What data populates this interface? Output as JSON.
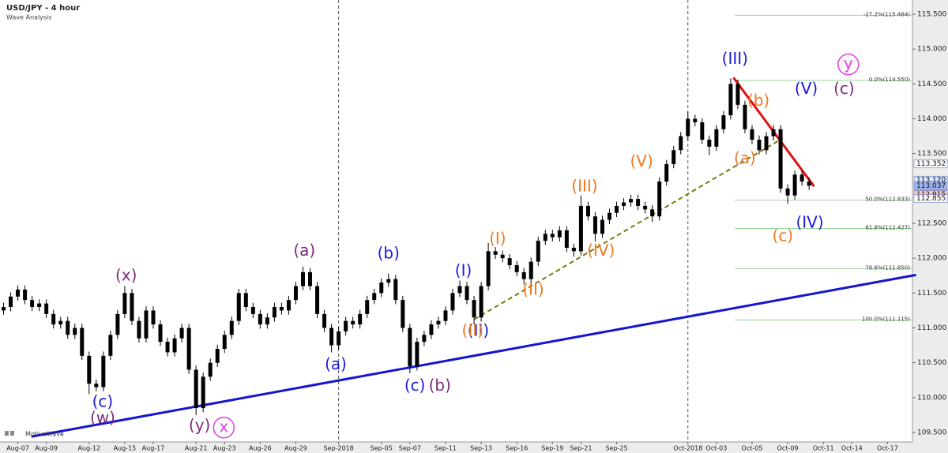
{
  "chart_data": {
    "type": "candlestick",
    "title": "USD/JPY - 4 hour",
    "subtitle": "Wave Analysis",
    "watermark": "MotiveWave",
    "color": "#000000",
    "categories": [
      null,
      null,
      "Aug-07",
      null,
      null,
      null,
      "Aug-09",
      null,
      null,
      null,
      null,
      null,
      "Aug-12",
      null,
      null,
      null,
      null,
      "Aug-15",
      null,
      null,
      null,
      "Aug-17",
      null,
      null,
      null,
      null,
      null,
      "Aug-21",
      null,
      null,
      null,
      "Aug-23",
      null,
      null,
      null,
      null,
      "Aug-26",
      null,
      null,
      null,
      null,
      "Aug-29",
      null,
      null,
      null,
      null,
      null,
      "Sep-2018",
      null,
      null,
      null,
      null,
      null,
      "Sep-05",
      null,
      null,
      null,
      "Sep-07",
      null,
      null,
      null,
      null,
      "Sep-11",
      null,
      null,
      null,
      null,
      "Sep-13",
      null,
      null,
      null,
      null,
      "Sep-16",
      null,
      null,
      null,
      null,
      "Sep-19",
      null,
      null,
      null,
      "Sep-21",
      null,
      null,
      null,
      null,
      "Sep-25",
      null,
      null,
      null,
      null,
      null,
      null,
      null,
      null,
      null,
      "Oct-2018",
      null,
      null,
      null,
      "Oct-03",
      null,
      null,
      null,
      null,
      "Oct-05",
      null,
      null,
      null,
      null,
      "Oct-09",
      null,
      null,
      null,
      null,
      "Oct-11",
      null,
      null,
      null,
      "Oct-14",
      null,
      null,
      null,
      null,
      "Oct-17",
      null,
      null,
      null
    ],
    "open": [
      111.25,
      111.3,
      111.45,
      111.55,
      111.4,
      111.3,
      111.35,
      111.2,
      111.05,
      111.1,
      110.9,
      111.0,
      110.6,
      110.2,
      110.15,
      110.6,
      110.9,
      111.2,
      111.5,
      111.1,
      110.85,
      111.25,
      111.05,
      110.8,
      110.65,
      110.85,
      111.0,
      110.4,
      109.85,
      110.3,
      110.5,
      110.7,
      110.9,
      111.1,
      111.5,
      111.3,
      111.2,
      111.05,
      111.15,
      111.3,
      111.25,
      111.4,
      111.6,
      111.8,
      111.6,
      111.2,
      111.0,
      110.75,
      110.95,
      111.1,
      111.05,
      111.2,
      111.4,
      111.5,
      111.65,
      111.7,
      111.4,
      111.0,
      110.45,
      110.8,
      110.9,
      111.05,
      111.1,
      111.25,
      111.5,
      111.6,
      111.4,
      111.15,
      111.6,
      112.1,
      112.05,
      112.0,
      111.9,
      111.8,
      111.7,
      111.95,
      112.25,
      112.35,
      112.3,
      112.4,
      112.15,
      112.1,
      112.75,
      112.6,
      112.35,
      112.55,
      112.65,
      112.75,
      112.8,
      112.85,
      112.75,
      112.7,
      112.6,
      113.1,
      113.35,
      113.55,
      113.75,
      114.0,
      113.95,
      113.7,
      113.6,
      113.85,
      114.05,
      114.5,
      114.2,
      113.85,
      113.7,
      113.55,
      113.75,
      113.85,
      113.0,
      112.9,
      113.2,
      113.1,
      null,
      null,
      null,
      null,
      null,
      null,
      null,
      null,
      null,
      null,
      null,
      null,
      null,
      null
    ],
    "high": [
      111.36,
      111.51,
      111.61,
      111.61,
      111.46,
      111.41,
      111.41,
      111.26,
      111.16,
      111.16,
      111.06,
      111.06,
      110.66,
      110.26,
      110.66,
      110.96,
      111.26,
      111.6,
      111.56,
      111.16,
      111.31,
      111.31,
      111.11,
      110.86,
      110.91,
      111.06,
      111.06,
      110.46,
      110.36,
      110.56,
      110.76,
      110.96,
      111.16,
      111.56,
      111.56,
      111.36,
      111.26,
      111.21,
      111.36,
      111.36,
      111.46,
      111.66,
      111.88,
      111.86,
      111.66,
      111.26,
      111.06,
      111.01,
      111.16,
      111.16,
      111.26,
      111.46,
      111.56,
      111.71,
      111.78,
      111.76,
      111.46,
      111.06,
      110.86,
      110.96,
      111.11,
      111.16,
      111.31,
      111.56,
      111.68,
      111.66,
      111.46,
      111.66,
      112.22,
      112.16,
      112.11,
      112.06,
      111.96,
      111.86,
      112.01,
      112.31,
      112.41,
      112.41,
      112.46,
      112.46,
      112.21,
      112.9,
      112.81,
      112.66,
      112.61,
      112.71,
      112.81,
      112.86,
      112.91,
      112.91,
      112.81,
      112.76,
      113.16,
      113.41,
      113.61,
      113.81,
      114.1,
      114.06,
      114.01,
      113.76,
      113.91,
      114.11,
      114.58,
      114.56,
      114.26,
      113.91,
      113.76,
      113.81,
      113.91,
      113.91,
      113.06,
      113.26,
      113.26,
      113.16,
      null,
      null,
      null,
      null,
      null,
      null,
      null,
      null,
      null,
      null,
      null,
      null,
      null,
      null
    ],
    "low": [
      111.19,
      111.24,
      111.39,
      111.34,
      111.24,
      111.24,
      111.14,
      110.99,
      110.99,
      110.84,
      110.84,
      110.54,
      110.05,
      110.09,
      110.09,
      110.54,
      110.84,
      111.14,
      111.04,
      110.79,
      110.79,
      110.99,
      110.74,
      110.59,
      110.59,
      110.79,
      110.34,
      109.75,
      109.79,
      110.24,
      110.44,
      110.64,
      110.84,
      111.04,
      111.24,
      111.14,
      110.99,
      110.99,
      111.09,
      111.19,
      111.19,
      111.34,
      111.54,
      111.54,
      111.14,
      110.94,
      110.65,
      110.69,
      110.89,
      110.99,
      110.99,
      111.14,
      111.34,
      111.44,
      111.59,
      111.34,
      110.94,
      110.35,
      110.39,
      110.74,
      110.84,
      110.99,
      111.04,
      111.19,
      111.44,
      111.34,
      111.05,
      111.09,
      111.54,
      111.99,
      111.94,
      111.84,
      111.74,
      111.62,
      111.64,
      111.89,
      112.19,
      112.24,
      112.24,
      112.09,
      112.02,
      112.04,
      112.54,
      112.24,
      112.29,
      112.49,
      112.59,
      112.69,
      112.74,
      112.69,
      112.64,
      112.52,
      112.54,
      113.04,
      113.29,
      113.49,
      113.69,
      113.89,
      113.64,
      113.48,
      113.54,
      113.79,
      113.99,
      114.14,
      113.79,
      113.64,
      113.49,
      113.49,
      113.69,
      112.94,
      112.78,
      112.84,
      113.04,
      112.98,
      null,
      null,
      null,
      null,
      null,
      null,
      null,
      null,
      null,
      null,
      null,
      null,
      null,
      null
    ],
    "close": [
      111.3,
      111.45,
      111.55,
      111.4,
      111.3,
      111.35,
      111.2,
      111.05,
      111.1,
      110.9,
      111.0,
      110.6,
      110.2,
      110.15,
      110.6,
      110.9,
      111.2,
      111.5,
      111.1,
      110.85,
      111.25,
      111.05,
      110.8,
      110.65,
      110.85,
      111.0,
      110.4,
      109.85,
      110.3,
      110.5,
      110.7,
      110.9,
      111.1,
      111.5,
      111.3,
      111.2,
      111.05,
      111.15,
      111.3,
      111.25,
      111.4,
      111.6,
      111.8,
      111.6,
      111.2,
      111.0,
      110.75,
      110.95,
      111.1,
      111.05,
      111.2,
      111.4,
      111.5,
      111.65,
      111.7,
      111.4,
      111.0,
      110.45,
      110.8,
      110.9,
      111.05,
      111.1,
      111.25,
      111.5,
      111.6,
      111.4,
      111.15,
      111.6,
      112.1,
      112.05,
      112.0,
      111.9,
      111.8,
      111.7,
      111.95,
      112.25,
      112.35,
      112.3,
      112.4,
      112.15,
      112.1,
      112.75,
      112.6,
      112.35,
      112.55,
      112.65,
      112.75,
      112.8,
      112.85,
      112.75,
      112.7,
      112.6,
      113.1,
      113.35,
      113.55,
      113.75,
      114.0,
      113.95,
      113.7,
      113.6,
      113.85,
      114.05,
      114.5,
      114.2,
      113.85,
      113.7,
      113.55,
      113.75,
      113.85,
      113.0,
      112.9,
      113.2,
      113.1,
      113.04,
      null,
      null,
      null,
      null,
      null,
      null,
      null,
      null,
      null,
      null,
      null,
      null,
      null,
      null
    ],
    "ylim": [
      109.364,
      115.704
    ],
    "yticks": [
      {
        "value": 109.5,
        "label": "109.500"
      },
      {
        "value": 110,
        "label": "110.000"
      },
      {
        "value": 110.5,
        "label": "110.500"
      },
      {
        "value": 111,
        "label": "111.000"
      },
      {
        "value": 111.5,
        "label": "111.500"
      },
      {
        "value": 112,
        "label": "112.000"
      },
      {
        "value": 112.5,
        "label": "112.500"
      },
      {
        "value": 113.5,
        "label": "113.500"
      },
      {
        "value": 114,
        "label": "114.000"
      },
      {
        "value": 114.5,
        "label": "114.500"
      },
      {
        "value": 115,
        "label": "115.000"
      },
      {
        "value": 115.5,
        "label": "115.500"
      }
    ],
    "price_labels": [
      {
        "value": 113.352,
        "label": "113.352",
        "color": "#ffffff"
      },
      {
        "value": 113.12,
        "label": "113.120",
        "color": "#d8e4ff"
      },
      {
        "value": 113.037,
        "label": "113.037",
        "color": "#9fb4f0"
      },
      {
        "value": 112.915,
        "label": "112.915",
        "color": "#f6c8c8"
      },
      {
        "value": 112.855,
        "label": "112.855",
        "color": "#ffffff"
      }
    ],
    "fib_color": "#9ad49a",
    "fib_levels": [
      {
        "value": 115.484,
        "label": "-27.2%(115.484)"
      },
      {
        "value": 114.55,
        "label": "0.0%(114.550)"
      },
      {
        "value": 112.833,
        "label": "50.0%(112.833)"
      },
      {
        "value": 112.427,
        "label": "61.8%(112.427)"
      },
      {
        "value": 111.85,
        "label": "78.6%(111.850)"
      },
      {
        "value": 111.115,
        "label": "100.0%(111.115)"
      }
    ],
    "trendlines": [
      {
        "color": "#1515d0",
        "width": 3,
        "dashed": false,
        "x": [
          3.9,
          128
        ],
        "y": [
          109.44,
          111.76
        ]
      },
      {
        "color": "#e01010",
        "width": 3,
        "dashed": false,
        "x": [
          102.4,
          113.7
        ],
        "y": [
          114.59,
          113.03
        ]
      },
      {
        "color": "#7a7a10",
        "width": 2,
        "dashed": true,
        "x": [
          66,
          109.3
        ],
        "y": [
          111.12,
          113.72
        ]
      }
    ],
    "wave_labels": [
      {
        "text": "(x)",
        "color": "#7b2a7b",
        "at": 17.2,
        "price": 111.74
      },
      {
        "text": "(c)",
        "color": "#1a1adc",
        "at": 13.9,
        "price": 109.93
      },
      {
        "text": "(w)",
        "color": "#7b2a7b",
        "at": 13.9,
        "price": 109.7
      },
      {
        "text": "(y)",
        "color": "#7b2a7b",
        "at": 27.5,
        "price": 109.59
      },
      {
        "text": "x",
        "color": "#e040e0",
        "at": 30.9,
        "price": 109.57,
        "circle": true
      },
      {
        "text": "(a)",
        "color": "#7b2a7b",
        "at": 42.2,
        "price": 112.1
      },
      {
        "text": "(a)",
        "color": "#1a1adc",
        "at": 46.6,
        "price": 110.47
      },
      {
        "text": "(b)",
        "color": "#1a1adc",
        "at": 54.0,
        "price": 112.06
      },
      {
        "text": "(c)",
        "color": "#1a1adc",
        "at": 57.7,
        "price": 110.16
      },
      {
        "text": "(b)",
        "color": "#7b2a7b",
        "at": 61.2,
        "price": 110.16
      },
      {
        "text": "(I)",
        "color": "#1a1adc",
        "at": 64.5,
        "price": 111.81
      },
      {
        "text": "(II)",
        "color": "#1a1adc",
        "at": 66.6,
        "price": 110.95
      },
      {
        "text": "(II)",
        "color": "#f07820",
        "at": 65.8,
        "price": 110.95
      },
      {
        "text": "(I)",
        "color": "#f07820",
        "at": 69.3,
        "price": 112.27
      },
      {
        "text": "(II)",
        "color": "#f07820",
        "at": 74.3,
        "price": 111.54
      },
      {
        "text": "(III)",
        "color": "#f07820",
        "at": 81.5,
        "price": 113.02
      },
      {
        "text": "(IV)",
        "color": "#f07820",
        "at": 83.8,
        "price": 112.1
      },
      {
        "text": "(V)",
        "color": "#f07820",
        "at": 89.5,
        "price": 113.38
      },
      {
        "text": "(III)",
        "color": "#1a1adc",
        "at": 102.6,
        "price": 114.85
      },
      {
        "text": "(b)",
        "color": "#f07820",
        "at": 105.9,
        "price": 114.25
      },
      {
        "text": "(a)",
        "color": "#f07820",
        "at": 104.0,
        "price": 113.42
      },
      {
        "text": "(c)",
        "color": "#f07820",
        "at": 109.3,
        "price": 112.31
      },
      {
        "text": "(IV)",
        "color": "#1a1adc",
        "at": 113.1,
        "price": 112.5
      },
      {
        "text": "(V)",
        "color": "#1a1adc",
        "at": 112.6,
        "price": 114.42
      },
      {
        "text": "(c)",
        "color": "#7b2a7b",
        "at": 117.9,
        "price": 114.42
      },
      {
        "text": "y",
        "color": "#e040e0",
        "at": 118.5,
        "price": 114.78,
        "circle": true
      }
    ]
  }
}
